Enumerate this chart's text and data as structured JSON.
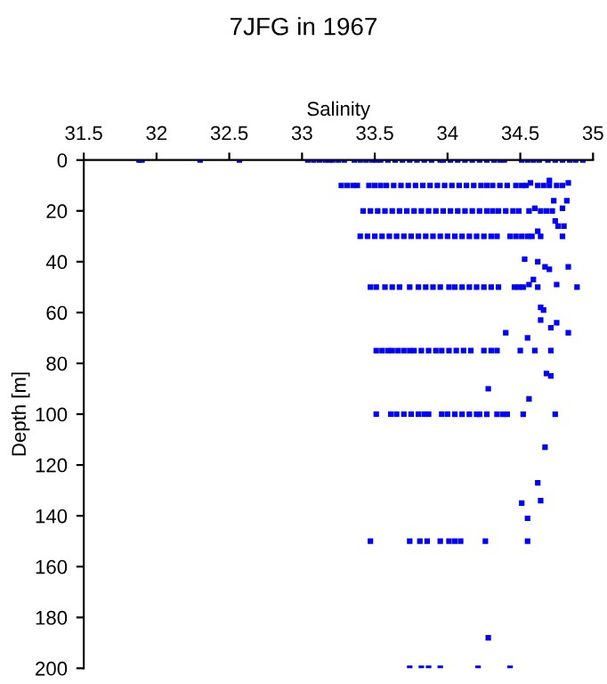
{
  "chart_data": {
    "type": "scatter",
    "title": "7JFG in 1967",
    "xlabel": "Salinity",
    "ylabel": "Depth [m]",
    "xlim": [
      31.5,
      35
    ],
    "xticks": [
      31.5,
      32,
      32.5,
      33,
      33.5,
      34,
      34.5,
      35
    ],
    "ylim": [
      200,
      0
    ],
    "yticks": [
      0,
      20,
      40,
      60,
      80,
      100,
      120,
      140,
      160,
      180,
      200
    ],
    "marker": "square",
    "grid": false,
    "legend": false,
    "series": [
      {
        "color": "#0000ff",
        "x": [
          31.88,
          31.9,
          32.3,
          32.57,
          33.04,
          33.08,
          33.12,
          33.16,
          33.19,
          33.21,
          33.25,
          33.29,
          33.36,
          33.4,
          33.44,
          33.48,
          33.51,
          33.54,
          33.59,
          33.64,
          33.69,
          33.74,
          33.79,
          33.84,
          33.89,
          33.95,
          33.97,
          34.02,
          34.07,
          34.12,
          34.17,
          34.22,
          34.27,
          34.32,
          34.36,
          34.39,
          34.51,
          34.55,
          34.59,
          34.63,
          34.69,
          34.74,
          34.79,
          34.84,
          34.88,
          34.93
        ],
        "values": [
          0,
          0,
          0,
          0,
          0,
          0,
          0,
          0,
          0,
          0,
          0,
          0,
          0,
          0,
          0,
          0,
          0,
          0,
          0,
          0,
          0,
          0,
          0,
          0,
          0,
          0,
          0,
          0,
          0,
          0,
          0,
          0,
          0,
          0,
          0,
          0,
          0,
          0,
          0,
          0,
          0,
          0,
          0,
          0,
          0,
          0
        ]
      },
      {
        "color": "#0000ff",
        "x": [
          33.27,
          33.31,
          33.35,
          33.38,
          33.46,
          33.5,
          33.54,
          33.58,
          33.63,
          33.68,
          33.73,
          33.78,
          33.83,
          33.88,
          33.93,
          33.98,
          34.03,
          34.08,
          34.13,
          34.18,
          34.23,
          34.27,
          34.31,
          34.36,
          34.41,
          34.47,
          34.51,
          34.54,
          34.62,
          34.66,
          34.7,
          34.75,
          34.79
        ],
        "values": [
          10,
          10,
          10,
          10,
          10,
          10,
          10,
          10,
          10,
          10,
          10,
          10,
          10,
          10,
          10,
          10,
          10,
          10,
          10,
          10,
          10,
          10,
          10,
          10,
          10,
          10,
          10,
          10,
          10,
          10,
          10,
          10,
          10
        ]
      },
      {
        "color": "#0000ff",
        "x": [
          33.42,
          33.47,
          33.52,
          33.57,
          33.62,
          33.67,
          33.72,
          33.77,
          33.82,
          33.87,
          33.92,
          33.97,
          34.02,
          34.07,
          34.12,
          34.17,
          34.22,
          34.27,
          34.31,
          34.35,
          34.4,
          34.45,
          34.49,
          34.56,
          34.64,
          34.68,
          34.72
        ],
        "values": [
          20,
          20,
          20,
          20,
          20,
          20,
          20,
          20,
          20,
          20,
          20,
          20,
          20,
          20,
          20,
          20,
          20,
          20,
          20,
          20,
          20,
          20,
          20,
          20,
          20,
          20,
          20
        ]
      },
      {
        "color": "#0000ff",
        "x": [
          33.4,
          33.45,
          33.5,
          33.55,
          33.6,
          33.65,
          33.7,
          33.75,
          33.8,
          33.85,
          33.9,
          33.95,
          34.0,
          34.05,
          34.1,
          34.15,
          34.2,
          34.25,
          34.3,
          34.34,
          34.43,
          34.47,
          34.51,
          34.55,
          34.58
        ],
        "values": [
          30,
          30,
          30,
          30,
          30,
          30,
          30,
          30,
          30,
          30,
          30,
          30,
          30,
          30,
          30,
          30,
          30,
          30,
          30,
          30,
          30,
          30,
          30,
          30,
          30
        ]
      },
      {
        "color": "#0000ff",
        "x": [
          33.47,
          33.51,
          33.57,
          33.62,
          33.67,
          33.74,
          33.8,
          33.85,
          33.9,
          33.95,
          34.01,
          34.05,
          34.1,
          34.15,
          34.2,
          34.25,
          34.3,
          34.35,
          34.46,
          34.49,
          34.52,
          34.62,
          34.89
        ],
        "values": [
          50,
          50,
          50,
          50,
          50,
          50,
          50,
          50,
          50,
          50,
          50,
          50,
          50,
          50,
          50,
          50,
          50,
          50,
          50,
          50,
          50,
          50,
          50
        ]
      },
      {
        "color": "#0000ff",
        "x": [
          33.51,
          33.55,
          33.59,
          33.62,
          33.66,
          33.7,
          33.74,
          33.77,
          33.82,
          33.87,
          33.92,
          33.96,
          34.01,
          34.06,
          34.11,
          34.16,
          34.25,
          34.3,
          34.34,
          34.5,
          34.6,
          34.71
        ],
        "values": [
          75,
          75,
          75,
          75,
          75,
          75,
          75,
          75,
          75,
          75,
          75,
          75,
          75,
          75,
          75,
          75,
          75,
          75,
          75,
          75,
          75,
          75
        ]
      },
      {
        "color": "#0000ff",
        "x": [
          33.51,
          33.61,
          33.65,
          33.7,
          33.75,
          33.8,
          33.84,
          33.87,
          33.96,
          34.0,
          34.05,
          34.1,
          34.15,
          34.2,
          34.22,
          34.27,
          34.34,
          34.38,
          34.41,
          34.52,
          34.74
        ],
        "values": [
          100,
          100,
          100,
          100,
          100,
          100,
          100,
          100,
          100,
          100,
          100,
          100,
          100,
          100,
          100,
          100,
          100,
          100,
          100,
          100,
          100
        ]
      },
      {
        "color": "#0000ff",
        "x": [
          33.47,
          33.74,
          33.81,
          33.86,
          33.95,
          34.01,
          34.05,
          34.09,
          34.26,
          34.55
        ],
        "values": [
          150,
          150,
          150,
          150,
          150,
          150,
          150,
          150,
          150,
          150
        ]
      },
      {
        "color": "#0000ff",
        "x": [
          33.74,
          33.82,
          33.87,
          33.95,
          34.21,
          34.43
        ],
        "values": [
          200,
          200,
          200,
          200,
          200,
          200
        ]
      },
      {
        "color": "#0000ff",
        "x": [
          34.57,
          34.7,
          34.83,
          34.73,
          34.82,
          34.6,
          34.79,
          34.74,
          34.8,
          34.76,
          34.62,
          34.64,
          34.79,
          34.53,
          34.62,
          34.67,
          34.7,
          34.83,
          34.59,
          34.56,
          34.75,
          34.64,
          34.66,
          34.64,
          34.75,
          34.71,
          34.83,
          34.4,
          34.55,
          34.68,
          34.71,
          34.28,
          34.56,
          34.67,
          34.62,
          34.51,
          34.64,
          34.55,
          34.28
        ],
        "values": [
          9,
          8,
          9,
          16,
          16,
          19,
          19,
          24,
          26,
          26,
          28,
          30,
          30,
          39,
          40,
          42,
          43,
          42,
          47,
          49,
          49,
          58,
          59,
          63,
          64,
          66,
          68,
          68,
          70,
          84,
          85,
          90,
          94,
          113,
          127,
          135,
          134,
          141,
          188
        ]
      }
    ]
  }
}
